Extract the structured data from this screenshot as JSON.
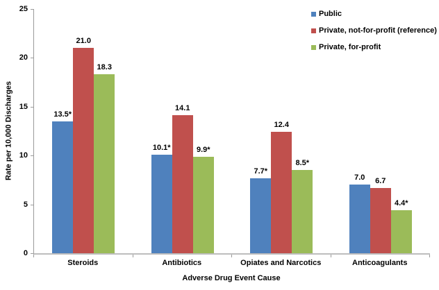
{
  "chart_data": {
    "type": "bar",
    "title": "",
    "xlabel": "Adverse Drug Event Cause",
    "ylabel": "Rate per 10,000 Discharges",
    "categories": [
      "Steroids",
      "Antibiotics",
      "Opiates and Narcotics",
      "Anticoagulants"
    ],
    "series": [
      {
        "name": "Public",
        "color": "#4F81BD",
        "values": [
          13.5,
          10.1,
          7.7,
          7.0
        ],
        "labels": [
          "13.5*",
          "10.1*",
          "7.7*",
          "7.0"
        ]
      },
      {
        "name": "Private, not-for-profit (reference)",
        "color": "#C0504D",
        "values": [
          21.0,
          14.1,
          12.4,
          6.7
        ],
        "labels": [
          "21.0",
          "14.1",
          "12.4",
          "6.7"
        ]
      },
      {
        "name": "Private, for-profit",
        "color": "#9BBB59",
        "values": [
          18.3,
          9.9,
          8.5,
          4.4
        ],
        "labels": [
          "18.3",
          "9.9*",
          "8.5*",
          "4.4*"
        ]
      }
    ],
    "ylim": [
      0,
      25
    ],
    "yticks": [
      0,
      5,
      10,
      15,
      20,
      25
    ],
    "grid": false,
    "legend_position": "top-right",
    "axis_color": "#9a9a9a"
  }
}
